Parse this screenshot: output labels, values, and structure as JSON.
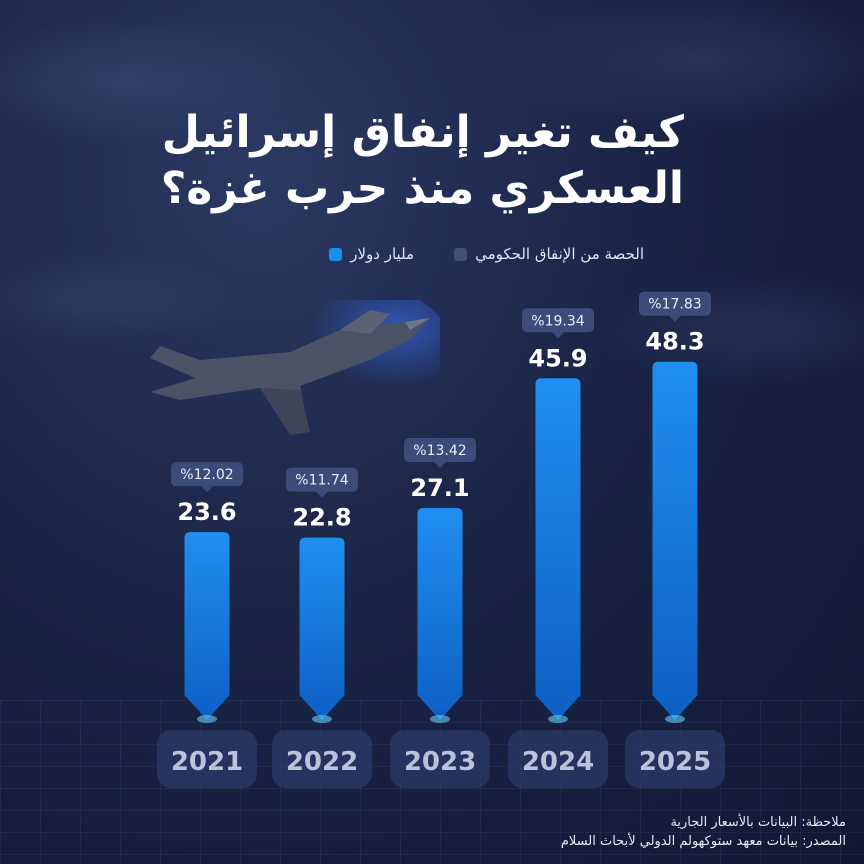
{
  "title": {
    "line1": "كيف تغير إنفاق إسرائيل",
    "line2": "العسكري منذ حرب غزة؟"
  },
  "legend": {
    "billion_usd": "مليار دولار",
    "gov_share": "الحصة من الإنفاق الحكومي"
  },
  "colors": {
    "bar_top": "#1f8ff0",
    "bar_bottom": "#0e5fc4",
    "billion_swatch": "#1a8ff0",
    "share_swatch": "#3f5079",
    "badge_bg": "#3b4c7a",
    "year_box": "#2a3a6a"
  },
  "icons": {
    "jet": "fighter-jet-icon"
  },
  "chart_data": {
    "type": "bar",
    "categories": [
      "2021",
      "2022",
      "2023",
      "2024",
      "2025"
    ],
    "series": [
      {
        "name": "مليار دولار",
        "values": [
          23.6,
          22.8,
          27.1,
          45.9,
          48.3
        ],
        "labels": [
          "23.6",
          "22.8",
          "27.1",
          "45.9",
          "48.3"
        ]
      },
      {
        "name": "الحصة من الإنفاق الحكومي",
        "values": [
          12.02,
          11.74,
          13.42,
          19.34,
          17.83
        ],
        "labels": [
          "%12.02",
          "%11.74",
          "%13.42",
          "%19.34",
          "%17.83"
        ]
      }
    ]
  },
  "notes": {
    "note": "ملاحظة: البيانات بالأسعار الجارية",
    "source": "المصدر: بيانات معهد ستوكهولم الدولي لأبحاث السلام"
  }
}
